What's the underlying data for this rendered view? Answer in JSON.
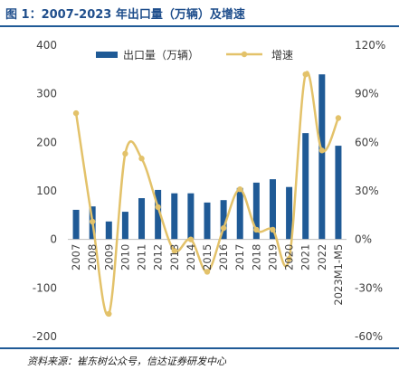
{
  "title": "图 1：2007-2023 年出口量（万辆）及增速",
  "source": "资料来源：崔东树公众号，信达证券研发中心",
  "colors": {
    "bar": "#1f5a96",
    "line": "#e3c26a",
    "axis": "#bfbfbf",
    "text": "#404040",
    "accent": "#1f5a96"
  },
  "chart_data": {
    "type": "bar",
    "categories": [
      "2007",
      "2008",
      "2009",
      "2010",
      "2011",
      "2012",
      "2013",
      "2014",
      "2015",
      "2016",
      "2017",
      "2018",
      "2019",
      "2020",
      "2021",
      "2022",
      "2023M1-M5"
    ],
    "series": [
      {
        "name": "出口量（万辆）",
        "type": "bar",
        "axis": "left",
        "values": [
          61,
          68,
          37,
          57,
          85,
          102,
          95,
          95,
          76,
          81,
          106,
          117,
          124,
          108,
          219,
          340,
          193
        ]
      },
      {
        "name": "增速",
        "type": "line",
        "axis": "right",
        "values": [
          78,
          11,
          -46,
          53,
          50,
          20,
          -7,
          0,
          -20,
          7,
          31,
          6,
          6,
          -12,
          102,
          55,
          75
        ]
      }
    ],
    "left_axis": {
      "ylim": [
        -200,
        400
      ],
      "ticks": [
        "-200",
        "-100",
        "0",
        "100",
        "200",
        "300",
        "400"
      ]
    },
    "right_axis": {
      "ylim": [
        -60,
        120
      ],
      "ticks": [
        "-60%",
        "-30%",
        "0%",
        "30%",
        "60%",
        "90%",
        "120%"
      ]
    },
    "legend": {
      "position": "top",
      "labels": [
        "出口量（万辆）",
        "增速"
      ]
    },
    "grid": false
  }
}
